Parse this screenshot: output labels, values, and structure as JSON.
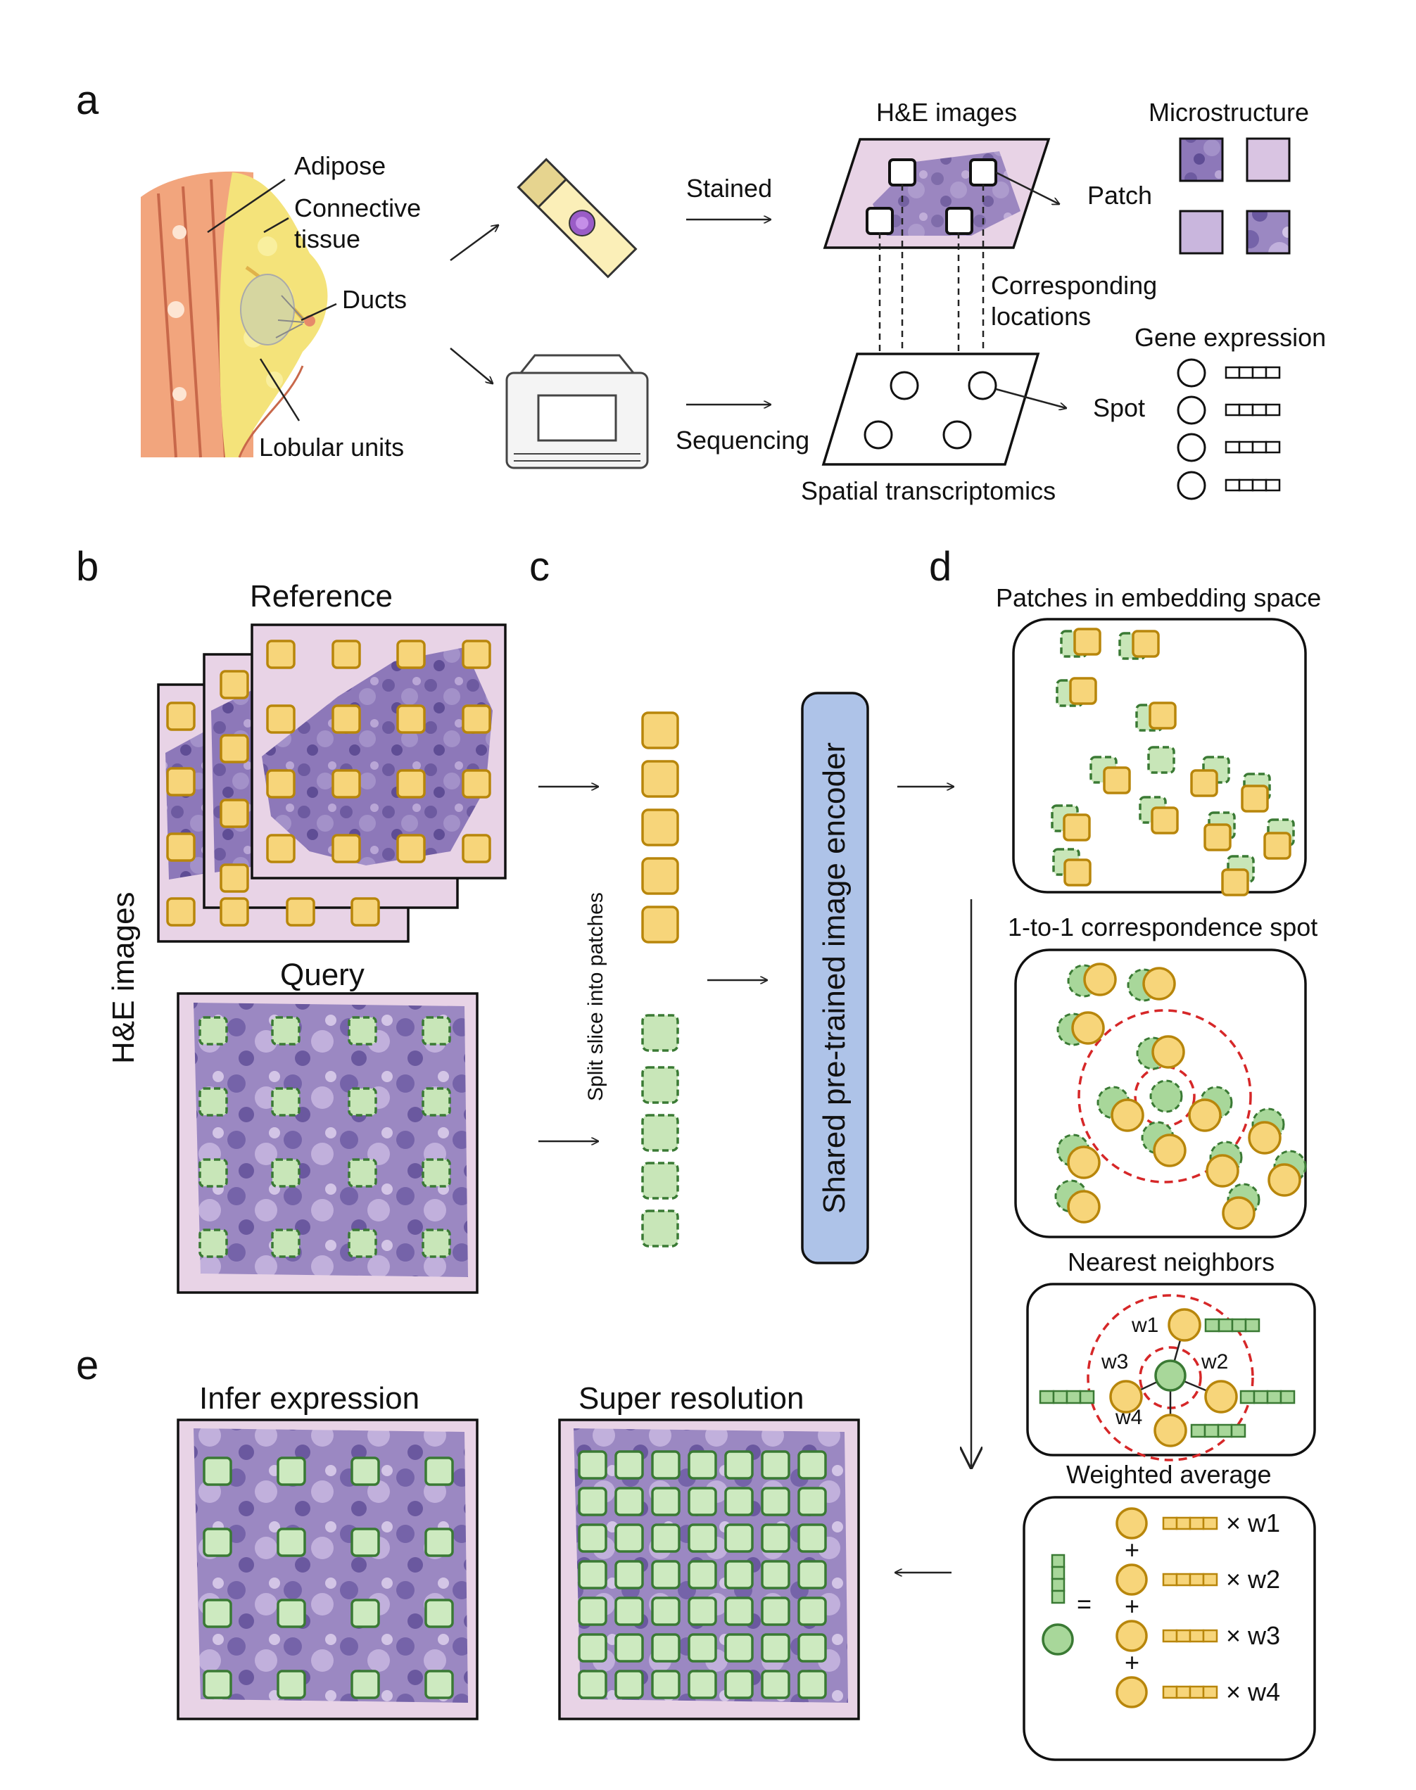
{
  "panels": {
    "a": "a",
    "b": "b",
    "c": "c",
    "d": "d",
    "e": "e"
  },
  "panel_a": {
    "anatomy": {
      "adipose": "Adipose",
      "connective_1": "Connective",
      "connective_2": "tissue",
      "ducts": "Ducts",
      "lobular": "Lobular units"
    },
    "stained": "Stained",
    "sequencing": "Sequencing",
    "he_images": "H&E images",
    "microstructure": "Microstructure",
    "patch": "Patch",
    "corresponding_1": "Corresponding",
    "corresponding_2": "locations",
    "gene_expression": "Gene expression",
    "spot": "Spot",
    "spatial": "Spatial transcriptomics"
  },
  "panel_b": {
    "reference": "Reference",
    "query": "Query",
    "he_images": "H&E images"
  },
  "panel_c": {
    "split": "Split slice into patches",
    "encoder": "Shared pre-trained image encoder"
  },
  "panel_d": {
    "embedding": "Patches in embedding space",
    "correspondence": "1-to-1 correspondence spot",
    "nearest": "Nearest neighbors",
    "weighted": "Weighted average",
    "weights": [
      "w1",
      "w2",
      "w3",
      "w4"
    ],
    "times_weights": [
      "× w1",
      "× w2",
      "× w3",
      "× w4"
    ],
    "plus": "+",
    "equals": "="
  },
  "panel_e": {
    "infer": "Infer expression",
    "super": "Super resolution"
  },
  "colors": {
    "tissue_bg": "#e8d3e6",
    "tissue": "#7f6aaf",
    "yellow": "#f7d57a",
    "green": "#cdeac0",
    "encoder": "#aec3e8",
    "ring": "#d62728"
  },
  "icons": [
    "breast-anatomy-illustration",
    "glass-slide-icon",
    "sequencer-machine-icon",
    "arrow-icon"
  ]
}
